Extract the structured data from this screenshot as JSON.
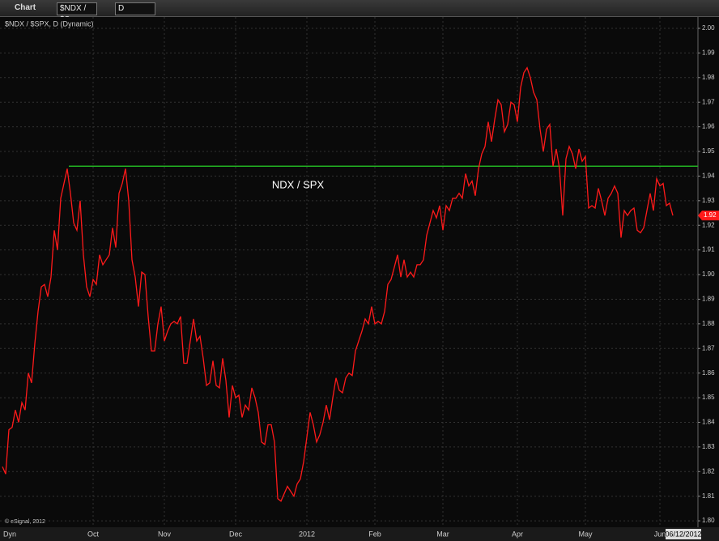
{
  "toolbar": {
    "title": "Chart",
    "symbol": "$NDX / $S",
    "interval": "D"
  },
  "legend": "$NDX / $SPX, D (Dynamic)",
  "copyright": "© eSignal, 2012",
  "footer": {
    "mode": "Dyn",
    "date": "06/12/2012"
  },
  "chart_data": {
    "type": "line",
    "annotation": "NDX / SPX",
    "last_value_label": "1.92",
    "series": [
      {
        "name": "$NDX / $SPX",
        "color": "#ff1a1a",
        "values": [
          1.822,
          1.819,
          1.837,
          1.838,
          1.845,
          1.84,
          1.848,
          1.845,
          1.86,
          1.856,
          1.872,
          1.885,
          1.895,
          1.896,
          1.891,
          1.899,
          1.918,
          1.91,
          1.931,
          1.937,
          1.943,
          1.933,
          1.921,
          1.918,
          1.93,
          1.908,
          1.895,
          1.891,
          1.898,
          1.896,
          1.908,
          1.904,
          1.906,
          1.908,
          1.919,
          1.911,
          1.933,
          1.937,
          1.943,
          1.93,
          1.906,
          1.899,
          1.887,
          1.901,
          1.9,
          1.883,
          1.869,
          1.869,
          1.88,
          1.887,
          1.873,
          1.877,
          1.88,
          1.881,
          1.88,
          1.883,
          1.864,
          1.864,
          1.873,
          1.882,
          1.873,
          1.875,
          1.866,
          1.855,
          1.856,
          1.865,
          1.855,
          1.854,
          1.866,
          1.857,
          1.842,
          1.855,
          1.85,
          1.851,
          1.842,
          1.847,
          1.845,
          1.854,
          1.85,
          1.844,
          1.832,
          1.831,
          1.839,
          1.839,
          1.832,
          1.809,
          1.808,
          1.811,
          1.814,
          1.812,
          1.81,
          1.815,
          1.817,
          1.824,
          1.834,
          1.844,
          1.839,
          1.832,
          1.835,
          1.84,
          1.847,
          1.841,
          1.85,
          1.858,
          1.853,
          1.852,
          1.858,
          1.86,
          1.859,
          1.869,
          1.873,
          1.877,
          1.882,
          1.88,
          1.887,
          1.88,
          1.881,
          1.88,
          1.885,
          1.896,
          1.898,
          1.903,
          1.908,
          1.899,
          1.906,
          1.899,
          1.901,
          1.899,
          1.904,
          1.904,
          1.906,
          1.916,
          1.921,
          1.926,
          1.923,
          1.928,
          1.918,
          1.928,
          1.926,
          1.931,
          1.931,
          1.933,
          1.931,
          1.941,
          1.936,
          1.938,
          1.932,
          1.943,
          1.949,
          1.952,
          1.962,
          1.954,
          1.963,
          1.971,
          1.969,
          1.958,
          1.961,
          1.97,
          1.969,
          1.962,
          1.976,
          1.982,
          1.984,
          1.98,
          1.974,
          1.971,
          1.959,
          1.95,
          1.959,
          1.961,
          1.944,
          1.951,
          1.943,
          1.924,
          1.947,
          1.952,
          1.949,
          1.943,
          1.951,
          1.946,
          1.948,
          1.927,
          1.928,
          1.927,
          1.935,
          1.93,
          1.924,
          1.931,
          1.933,
          1.936,
          1.933,
          1.915,
          1.926,
          1.924,
          1.926,
          1.927,
          1.918,
          1.917,
          1.919,
          1.926,
          1.933,
          1.926,
          1.939,
          1.936,
          1.937,
          1.928,
          1.929,
          1.924
        ]
      }
    ],
    "trendline": {
      "color": "#22b022",
      "value": 1.944,
      "start": 20.5
    },
    "xlim": [
      -0.75,
      214.75
    ],
    "xticks": [
      {
        "value": 28,
        "label": "Oct"
      },
      {
        "value": 50,
        "label": "Nov"
      },
      {
        "value": 72,
        "label": "Dec"
      },
      {
        "value": 94,
        "label": "2012"
      },
      {
        "value": 115,
        "label": "Feb"
      },
      {
        "value": 136,
        "label": "Mar"
      },
      {
        "value": 159,
        "label": "Apr"
      },
      {
        "value": 180,
        "label": "May"
      },
      {
        "value": 203,
        "label": "Jun"
      }
    ],
    "ylim": [
      1.7974,
      2.0046
    ],
    "yticks": [
      {
        "value": 2.0,
        "label": "2.00"
      },
      1.99,
      1.98,
      1.97,
      1.96,
      1.95,
      1.94,
      1.93,
      1.92,
      1.91,
      {
        "value": 1.9,
        "label": "1.90"
      },
      1.89,
      1.88,
      1.87,
      1.86,
      1.85,
      1.84,
      1.83,
      1.82,
      1.81,
      {
        "value": 1.8,
        "label": "1.80"
      }
    ],
    "grid": true
  }
}
